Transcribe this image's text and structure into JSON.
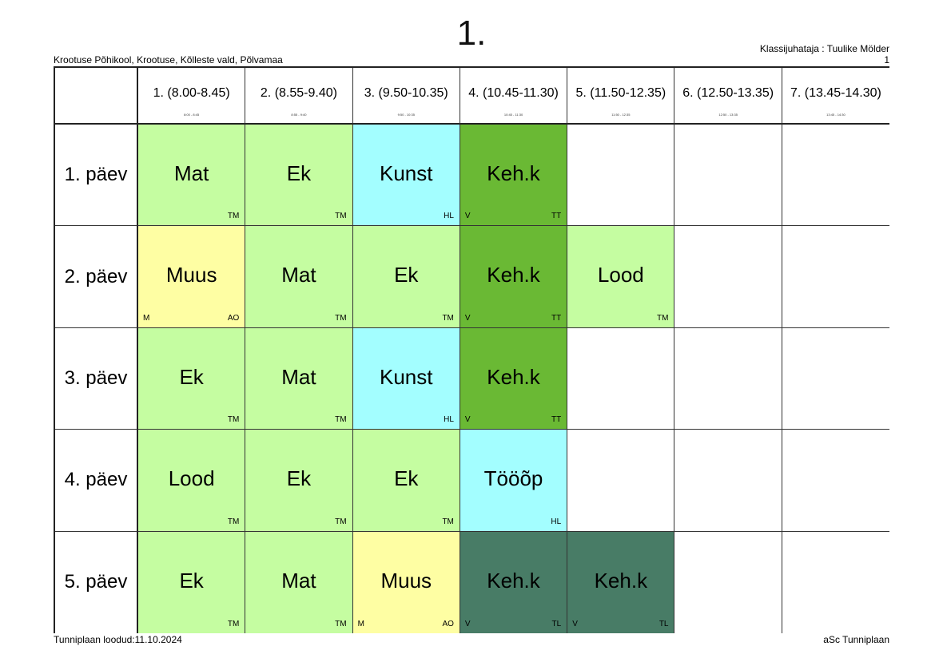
{
  "header": {
    "title": "1.",
    "school": "Krootuse Põhikool, Krootuse, Kõlleste vald, Põlvamaa",
    "class_teacher": "Klassijuhataja : Tuulike Mölder",
    "page_number": "1"
  },
  "footer": {
    "created": "Tunniplaan loodud:11.10.2024",
    "software": "aSc Tunniplaan"
  },
  "colors": {
    "green": "#c5fda1",
    "cyan": "#a3feff",
    "yellow": "#fefea3",
    "dark_green": "#6ab934",
    "teal": "#487c66"
  },
  "periods": [
    {
      "label": "1. (8.00-8.45)",
      "sub": "8:00 - 8:45"
    },
    {
      "label": "2. (8.55-9.40)",
      "sub": "8:55 - 9:40"
    },
    {
      "label": "3. (9.50-10.35)",
      "sub": "9:50 - 10:35"
    },
    {
      "label": "4. (10.45-11.30)",
      "sub": "10:45 - 11:30"
    },
    {
      "label": "5. (11.50-12.35)",
      "sub": "11:50 - 12:35"
    },
    {
      "label": "6. (12.50-13.35)",
      "sub": "12:50 - 13:35"
    },
    {
      "label": "7. (13.45-14.30)",
      "sub": "13:45 - 14:30"
    }
  ],
  "days": [
    {
      "label": "1. päev",
      "lessons": [
        {
          "subject": "Mat",
          "teacher": "TM",
          "room": "",
          "color": "#c5fda1"
        },
        {
          "subject": "Ek",
          "teacher": "TM",
          "room": "",
          "color": "#c5fda1"
        },
        {
          "subject": "Kunst",
          "teacher": "HL",
          "room": "",
          "color": "#a3feff"
        },
        {
          "subject": "Keh.k",
          "teacher": "TT",
          "room": "V",
          "color": "#6ab934"
        },
        null,
        null,
        null
      ]
    },
    {
      "label": "2. päev",
      "lessons": [
        {
          "subject": "Muus",
          "teacher": "AO",
          "room": "M",
          "color": "#fefea3"
        },
        {
          "subject": "Mat",
          "teacher": "TM",
          "room": "",
          "color": "#c5fda1"
        },
        {
          "subject": "Ek",
          "teacher": "TM",
          "room": "",
          "color": "#c5fda1"
        },
        {
          "subject": "Keh.k",
          "teacher": "TT",
          "room": "V",
          "color": "#6ab934"
        },
        {
          "subject": "Lood",
          "teacher": "TM",
          "room": "",
          "color": "#c5fda1"
        },
        null,
        null
      ]
    },
    {
      "label": "3. päev",
      "lessons": [
        {
          "subject": "Ek",
          "teacher": "TM",
          "room": "",
          "color": "#c5fda1"
        },
        {
          "subject": "Mat",
          "teacher": "TM",
          "room": "",
          "color": "#c5fda1"
        },
        {
          "subject": "Kunst",
          "teacher": "HL",
          "room": "",
          "color": "#a3feff"
        },
        {
          "subject": "Keh.k",
          "teacher": "TT",
          "room": "V",
          "color": "#6ab934"
        },
        null,
        null,
        null
      ]
    },
    {
      "label": "4. päev",
      "lessons": [
        {
          "subject": "Lood",
          "teacher": "TM",
          "room": "",
          "color": "#c5fda1"
        },
        {
          "subject": "Ek",
          "teacher": "TM",
          "room": "",
          "color": "#c5fda1"
        },
        {
          "subject": "Ek",
          "teacher": "TM",
          "room": "",
          "color": "#c5fda1"
        },
        {
          "subject": "Tööõp",
          "teacher": "HL",
          "room": "",
          "color": "#a3feff"
        },
        null,
        null,
        null
      ]
    },
    {
      "label": "5. päev",
      "lessons": [
        {
          "subject": "Ek",
          "teacher": "TM",
          "room": "",
          "color": "#c5fda1"
        },
        {
          "subject": "Mat",
          "teacher": "TM",
          "room": "",
          "color": "#c5fda1"
        },
        {
          "subject": "Muus",
          "teacher": "AO",
          "room": "M",
          "color": "#fefea3"
        },
        {
          "subject": "Keh.k",
          "teacher": "TL",
          "room": "V",
          "color": "#487c66"
        },
        {
          "subject": "Keh.k",
          "teacher": "TL",
          "room": "V",
          "color": "#487c66"
        },
        null,
        null
      ]
    }
  ]
}
